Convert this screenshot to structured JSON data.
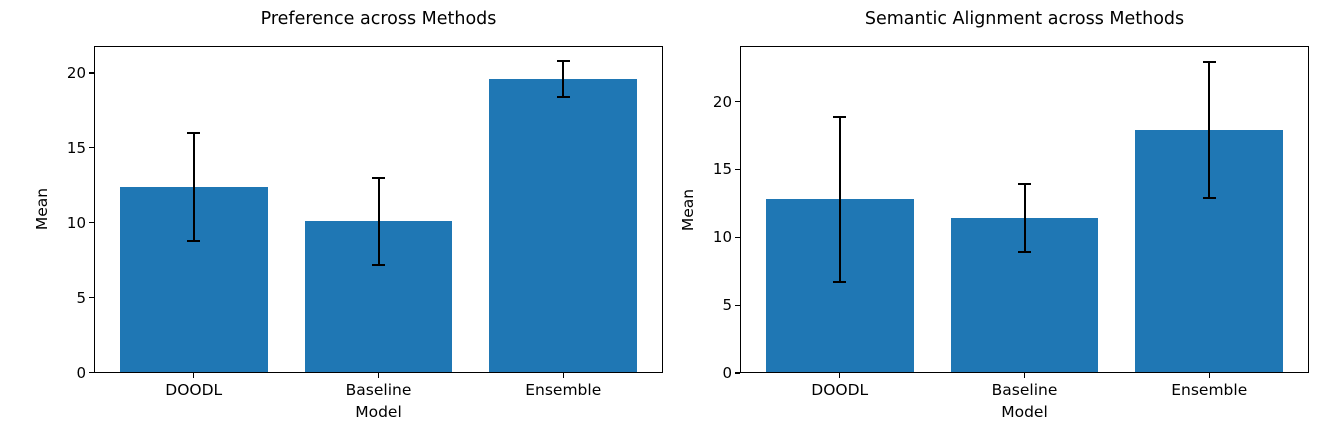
{
  "chart_data": [
    {
      "type": "bar",
      "title": "Preference across Methods",
      "xlabel": "Model",
      "ylabel": "Mean",
      "categories": [
        "DOODL",
        "Baseline",
        "Ensemble"
      ],
      "values": [
        12.4,
        10.1,
        19.6
      ],
      "errors": [
        3.6,
        2.9,
        1.2
      ],
      "yticks": [
        0,
        5,
        10,
        15,
        20
      ],
      "ylim": [
        0,
        21.8
      ],
      "bar_color": "#1f77b4",
      "error_color": "#000000",
      "grid": false,
      "legend": null
    },
    {
      "type": "bar",
      "title": "Semantic Alignment across Methods",
      "xlabel": "Model",
      "ylabel": "Mean",
      "categories": [
        "DOODL",
        "Baseline",
        "Ensemble"
      ],
      "values": [
        12.8,
        11.4,
        17.9
      ],
      "errors": [
        6.1,
        2.5,
        5.0
      ],
      "yticks": [
        0,
        5,
        10,
        15,
        20
      ],
      "ylim": [
        0,
        24.1
      ],
      "bar_color": "#1f77b4",
      "error_color": "#000000",
      "grid": false,
      "legend": null
    }
  ]
}
